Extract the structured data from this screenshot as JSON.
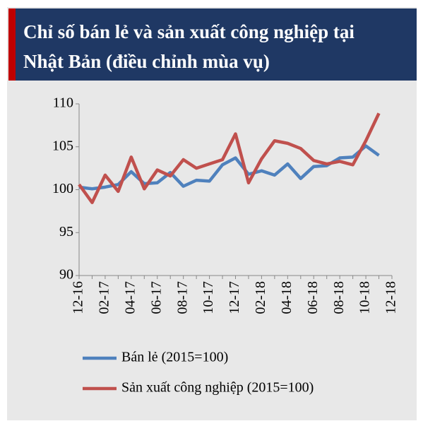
{
  "chart_data": {
    "type": "line",
    "title_lines": [
      "Chỉ số bán lẻ và sản xuất công nghiệp tại",
      "Nhật Bản (điều chỉnh mùa vụ)"
    ],
    "categories": [
      "12-16",
      null,
      "02-17",
      null,
      "04-17",
      null,
      "06-17",
      null,
      "08-17",
      null,
      "10-17",
      null,
      "12-17",
      null,
      "02-18",
      null,
      "04-18",
      null,
      "06-18",
      null,
      "08-18",
      null,
      "10-18",
      null,
      "12-18"
    ],
    "series": [
      {
        "name": "Bán lẻ (2015=100)",
        "color": "#4f81bd",
        "values": [
          100.3,
          100.1,
          100.3,
          100.6,
          102.1,
          100.7,
          100.8,
          102.0,
          100.4,
          101.1,
          101.0,
          102.9,
          103.7,
          101.8,
          102.2,
          101.7,
          103.0,
          101.3,
          102.7,
          102.8,
          103.7,
          103.8,
          105.1,
          104.0,
          null
        ]
      },
      {
        "name": "Sản xuất công nghiệp (2015=100)",
        "color": "#c0504d",
        "values": [
          100.6,
          98.5,
          101.7,
          99.8,
          103.8,
          100.1,
          102.3,
          101.6,
          103.5,
          102.5,
          103.0,
          103.5,
          106.5,
          100.8,
          103.6,
          105.7,
          105.4,
          104.8,
          103.4,
          103.0,
          103.3,
          102.9,
          105.7,
          108.9,
          null
        ]
      }
    ],
    "ylim": [
      90,
      110
    ],
    "yticks": [
      90,
      95,
      100,
      105,
      110
    ]
  }
}
